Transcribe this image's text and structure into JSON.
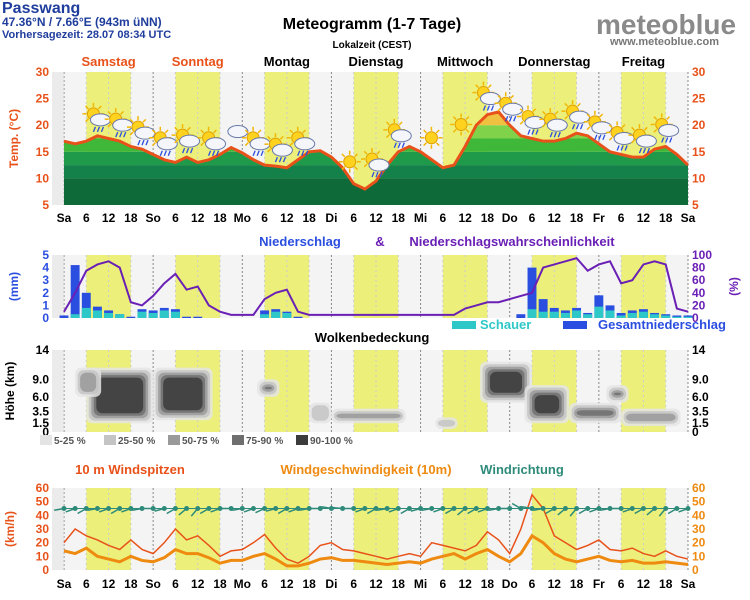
{
  "header": {
    "location": "Passwang",
    "coords": "47.36°N / 7.66°E (943m üNN)",
    "forecast_time": "Vorhersagezeit: 28.07 08:34 UTC",
    "title": "Meteogramm (1-7 Tage)",
    "subtitle": "Lokalzeit (CEST)",
    "brand": "meteoblue",
    "brand_url": "www.meteoblue.com"
  },
  "days": {
    "names": [
      "Samstag",
      "Sonntag",
      "Montag",
      "Dienstag",
      "Mittwoch",
      "Donnerstag",
      "Freitag"
    ],
    "colors": [
      "#e8521a",
      "#e8521a",
      "#000000",
      "#000000",
      "#000000",
      "#000000",
      "#000000"
    ],
    "abbr": [
      "Sa",
      "So",
      "Mo",
      "Di",
      "Mi",
      "Do",
      "Fr",
      "Sa"
    ],
    "hour_ticks": [
      "6",
      "12",
      "18"
    ]
  },
  "colors": {
    "daylight": "#ecf07a",
    "temp_line": "#e8521a",
    "precip_line": "#6a1fb5",
    "shower": "#2ec8c8",
    "total_precip": "#2a4ee0",
    "gust": "#e8521a",
    "wind_speed": "#ef8a10",
    "wind_dir": "#2e8b7a"
  },
  "chart_data": [
    {
      "type": "area",
      "name": "temperature",
      "ylabel": "Temp. (°C)",
      "ylim": [
        5,
        30
      ],
      "yticks": [
        5,
        10,
        15,
        20,
        25,
        30
      ],
      "grid": true,
      "x_unit": "hours since Samstag 00:00",
      "x": [
        0,
        3,
        6,
        9,
        12,
        15,
        18,
        21,
        24,
        27,
        30,
        33,
        36,
        39,
        42,
        45,
        48,
        51,
        54,
        57,
        60,
        63,
        66,
        69,
        72,
        75,
        78,
        81,
        84,
        87,
        90,
        93,
        96,
        99,
        102,
        105,
        108,
        111,
        114,
        117,
        120,
        123,
        126,
        129,
        132,
        135,
        138,
        141,
        144,
        147,
        150,
        153,
        156,
        159,
        162,
        165,
        168
      ],
      "temperature": [
        17,
        16.5,
        17,
        18,
        17.5,
        17,
        16,
        15.5,
        14.5,
        13.5,
        13,
        14,
        13,
        13.5,
        14.5,
        15.8,
        14.8,
        13.5,
        12.5,
        12.3,
        12,
        13.5,
        15,
        15.2,
        14,
        12,
        9,
        8,
        9.5,
        12.5,
        15,
        16,
        15,
        13.5,
        12,
        12.5,
        16,
        20,
        22,
        22.5,
        20,
        18,
        17.5,
        17,
        17,
        17.5,
        18.5,
        18,
        16.5,
        15,
        14.5,
        14,
        14,
        15.5,
        16,
        14.5,
        12.5
      ],
      "series_names": [
        "Temperature"
      ]
    },
    {
      "type": "bar",
      "name": "precipitation",
      "title_left": "Niederschlag",
      "title_amp": "&",
      "title_right": "Niederschlagswahrscheinlichkeit",
      "ylabel_left": "(mm)",
      "ylabel_right": "(%)",
      "ylim": [
        0,
        5
      ],
      "yticks": [
        0,
        1,
        2,
        3,
        4,
        5
      ],
      "ylim_right": [
        0,
        100
      ],
      "yticks_right": [
        0,
        20,
        40,
        60,
        80,
        100
      ],
      "x_unit": "hours since Samstag 00:00",
      "x": [
        0,
        3,
        6,
        9,
        12,
        15,
        18,
        21,
        24,
        27,
        30,
        33,
        36,
        39,
        42,
        45,
        48,
        51,
        54,
        57,
        60,
        63,
        66,
        69,
        72,
        75,
        78,
        81,
        84,
        87,
        90,
        93,
        96,
        99,
        102,
        105,
        108,
        111,
        114,
        117,
        120,
        123,
        126,
        129,
        132,
        135,
        138,
        141,
        144,
        147,
        150,
        153,
        156,
        159,
        162,
        165,
        168
      ],
      "probability": [
        10,
        40,
        75,
        85,
        90,
        80,
        25,
        20,
        35,
        55,
        70,
        45,
        50,
        20,
        10,
        5,
        5,
        5,
        30,
        40,
        45,
        10,
        5,
        5,
        5,
        5,
        5,
        5,
        5,
        5,
        5,
        5,
        5,
        5,
        5,
        5,
        15,
        20,
        25,
        25,
        30,
        35,
        40,
        80,
        85,
        90,
        95,
        75,
        85,
        90,
        55,
        60,
        85,
        90,
        85,
        15,
        10
      ],
      "shower": [
        0,
        0.3,
        0.8,
        0.6,
        0.4,
        0.3,
        0,
        0.5,
        0.4,
        0.6,
        0.5,
        0,
        0,
        0,
        0,
        0,
        0,
        0,
        0.3,
        0.5,
        0.4,
        0,
        0,
        0,
        0,
        0,
        0,
        0,
        0,
        0,
        0,
        0,
        0,
        0,
        0,
        0,
        0,
        0,
        0,
        0,
        0,
        0,
        0.7,
        0.5,
        0.5,
        0.4,
        0.6,
        0.3,
        0.9,
        0.6,
        0.2,
        0.4,
        0.5,
        0.3,
        0.2,
        0.1,
        0.1
      ],
      "total": [
        0.2,
        4.2,
        2.0,
        0.9,
        0.6,
        0.3,
        0.1,
        0.7,
        0.6,
        0.8,
        0.7,
        0.1,
        0.1,
        0,
        0,
        0,
        0,
        0,
        0.6,
        0.7,
        0.5,
        0.1,
        0,
        0,
        0,
        0,
        0,
        0,
        0,
        0,
        0,
        0,
        0,
        0,
        0,
        0,
        0,
        0,
        0,
        0,
        0,
        0.3,
        4.0,
        1.5,
        0.8,
        0.6,
        0.8,
        0.4,
        1.8,
        1.0,
        0.4,
        0.6,
        0.7,
        0.4,
        0.3,
        0.2,
        0.2
      ],
      "legend": [
        "Schauer",
        "Gesamtniederschlag"
      ]
    },
    {
      "type": "heatmap",
      "name": "cloud_cover",
      "title": "Wolkenbedeckung",
      "ylabel": "Höhe (km)",
      "yticks": [
        "0",
        "1.5",
        "3.5",
        "6.0",
        "9.0",
        "14"
      ],
      "x_unit": "hours since Samstag 00:00",
      "legend": [
        "5-25 %",
        "25-50 %",
        "50-75 %",
        "75-90 %",
        "90-100 %"
      ],
      "blobs": [
        {
          "x0": 6,
          "x1": 24,
          "low": 1.5,
          "high": 11,
          "max": 100
        },
        {
          "x0": 24,
          "x1": 40,
          "low": 2,
          "high": 11,
          "max": 95
        },
        {
          "x0": 3,
          "x1": 10,
          "low": 6,
          "high": 11,
          "max": 60
        },
        {
          "x0": 52,
          "x1": 58,
          "low": 6,
          "high": 9,
          "max": 75
        },
        {
          "x0": 66,
          "x1": 72,
          "low": 1.5,
          "high": 5,
          "max": 40
        },
        {
          "x0": 72,
          "x1": 92,
          "low": 1.5,
          "high": 4,
          "max": 65
        },
        {
          "x0": 100,
          "x1": 106,
          "low": 0.5,
          "high": 2.5,
          "max": 35
        },
        {
          "x0": 112,
          "x1": 126,
          "low": 5,
          "high": 12,
          "max": 95
        },
        {
          "x0": 124,
          "x1": 136,
          "low": 1.5,
          "high": 8,
          "max": 95
        },
        {
          "x0": 136,
          "x1": 150,
          "low": 1.5,
          "high": 5,
          "max": 70
        },
        {
          "x0": 146,
          "x1": 152,
          "low": 5,
          "high": 8,
          "max": 80
        },
        {
          "x0": 150,
          "x1": 166,
          "low": 1.0,
          "high": 4,
          "max": 65
        }
      ]
    },
    {
      "type": "line",
      "name": "wind",
      "title_gust": "10 m Windspitzen",
      "title_speed": "Windgeschwindigkeit (10m)",
      "title_dir": "Windrichtung",
      "ylabel": "(km/h)",
      "ylim": [
        0,
        60
      ],
      "yticks": [
        0,
        10,
        20,
        30,
        40,
        50,
        60
      ],
      "x_unit": "hours since Samstag 00:00",
      "x": [
        0,
        3,
        6,
        9,
        12,
        15,
        18,
        21,
        24,
        27,
        30,
        33,
        36,
        39,
        42,
        45,
        48,
        51,
        54,
        57,
        60,
        63,
        66,
        69,
        72,
        75,
        78,
        81,
        84,
        87,
        90,
        93,
        96,
        99,
        102,
        105,
        108,
        111,
        114,
        117,
        120,
        123,
        126,
        129,
        132,
        135,
        138,
        141,
        144,
        147,
        150,
        153,
        156,
        159,
        162,
        165,
        168
      ],
      "gusts": [
        20,
        30,
        25,
        22,
        18,
        15,
        22,
        15,
        12,
        20,
        30,
        22,
        25,
        18,
        10,
        14,
        15,
        20,
        26,
        16,
        8,
        5,
        10,
        18,
        20,
        15,
        14,
        12,
        10,
        8,
        10,
        12,
        10,
        20,
        18,
        16,
        14,
        18,
        28,
        22,
        12,
        30,
        55,
        45,
        25,
        20,
        15,
        18,
        22,
        15,
        14,
        16,
        12,
        10,
        14,
        10,
        8
      ],
      "speed": [
        14,
        12,
        16,
        10,
        8,
        6,
        10,
        7,
        6,
        9,
        15,
        12,
        12,
        9,
        5,
        7,
        7,
        10,
        12,
        8,
        3,
        3,
        5,
        8,
        9,
        7,
        7,
        6,
        5,
        4,
        5,
        6,
        5,
        8,
        10,
        12,
        8,
        12,
        15,
        10,
        6,
        12,
        25,
        20,
        12,
        8,
        6,
        8,
        10,
        7,
        6,
        7,
        5,
        5,
        6,
        5,
        4
      ],
      "direction_deg": [
        260,
        250,
        240,
        260,
        250,
        240,
        250,
        260,
        270,
        255,
        240,
        230,
        220,
        240,
        250,
        270,
        260,
        250,
        245,
        255,
        240,
        250,
        260,
        270,
        280,
        275,
        270,
        250,
        240,
        260,
        250,
        240,
        255,
        260,
        250,
        240,
        230,
        240,
        250,
        260,
        270,
        300,
        280,
        260,
        240,
        230,
        220,
        240,
        250,
        260,
        270,
        250,
        240,
        230,
        220,
        240,
        250
      ]
    }
  ],
  "weather_icons": [
    {
      "hour": 9,
      "kind": "sun-rain"
    },
    {
      "hour": 15,
      "kind": "sun-rain"
    },
    {
      "hour": 21,
      "kind": "sun-rain"
    },
    {
      "hour": 27,
      "kind": "sun-rain"
    },
    {
      "hour": 33,
      "kind": "sun-rain"
    },
    {
      "hour": 40,
      "kind": "sun-rain"
    },
    {
      "hour": 46,
      "kind": "cloud"
    },
    {
      "hour": 52,
      "kind": "sun-rain"
    },
    {
      "hour": 58,
      "kind": "sun-rain"
    },
    {
      "hour": 64,
      "kind": "sun-rain"
    },
    {
      "hour": 78,
      "kind": "sun"
    },
    {
      "hour": 84,
      "kind": "sun-rain"
    },
    {
      "hour": 90,
      "kind": "sun-rain"
    },
    {
      "hour": 100,
      "kind": "sun"
    },
    {
      "hour": 108,
      "kind": "sun"
    },
    {
      "hour": 114,
      "kind": "sun-rain"
    },
    {
      "hour": 120,
      "kind": "sun-rain"
    },
    {
      "hour": 126,
      "kind": "sun-rain"
    },
    {
      "hour": 132,
      "kind": "sun-rain"
    },
    {
      "hour": 138,
      "kind": "sun-rain"
    },
    {
      "hour": 144,
      "kind": "sun-rain"
    },
    {
      "hour": 150,
      "kind": "sun-rain"
    },
    {
      "hour": 156,
      "kind": "sun-rain"
    },
    {
      "hour": 162,
      "kind": "sun-rain"
    }
  ]
}
